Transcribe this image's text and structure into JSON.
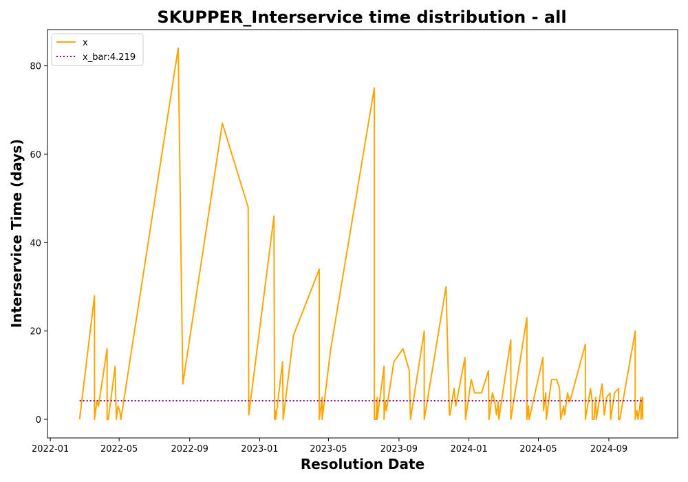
{
  "chart_data": {
    "type": "line",
    "title": "SKUPPER_Interservice time distribution - all",
    "xlabel": "Resolution Date",
    "ylabel": "Interservice Time (days)",
    "x_tick_labels": [
      "2022-01",
      "2022-05",
      "2022-09",
      "2023-01",
      "2023-05",
      "2023-09",
      "2024-01",
      "2024-05",
      "2024-09"
    ],
    "x_ticks": [
      "2022-01-01",
      "2022-05-01",
      "2022-09-01",
      "2023-01-01",
      "2023-05-01",
      "2023-09-01",
      "2024-01-01",
      "2024-05-01",
      "2024-09-01"
    ],
    "y_ticks": [
      0,
      20,
      40,
      60,
      80
    ],
    "xlim": [
      "2021-12-27",
      "2024-12-30"
    ],
    "ylim": [
      -4.2,
      88.2
    ],
    "legend_position": "top-left",
    "series": [
      {
        "name": "x",
        "color": "#FFA500",
        "style": "solid",
        "points": [
          [
            "2022-02-21",
            0
          ],
          [
            "2022-03-19",
            28
          ],
          [
            "2022-03-19",
            0
          ],
          [
            "2022-03-23",
            4
          ],
          [
            "2022-03-26",
            3
          ],
          [
            "2022-04-10",
            16
          ],
          [
            "2022-04-10",
            0
          ],
          [
            "2022-04-12",
            0
          ],
          [
            "2022-04-24",
            12
          ],
          [
            "2022-04-26",
            0
          ],
          [
            "2022-04-29",
            3
          ],
          [
            "2022-05-02",
            2
          ],
          [
            "2022-05-04",
            0
          ],
          [
            "2022-08-12",
            84
          ],
          [
            "2022-08-20",
            8
          ],
          [
            "2022-10-28",
            67
          ],
          [
            "2022-12-12",
            48
          ],
          [
            "2022-12-13",
            1
          ],
          [
            "2023-01-26",
            46
          ],
          [
            "2023-01-27",
            0
          ],
          [
            "2023-01-28",
            2
          ],
          [
            "2023-01-29",
            0
          ],
          [
            "2023-02-10",
            13
          ],
          [
            "2023-02-11",
            0
          ],
          [
            "2023-03-01",
            19
          ],
          [
            "2023-04-15",
            34
          ],
          [
            "2023-04-15",
            0
          ],
          [
            "2023-04-20",
            5
          ],
          [
            "2023-04-20",
            0
          ],
          [
            "2023-05-05",
            16
          ],
          [
            "2023-07-20",
            75
          ],
          [
            "2023-07-20",
            0
          ],
          [
            "2023-07-23",
            0
          ],
          [
            "2023-07-25",
            5
          ],
          [
            "2023-07-25",
            0
          ],
          [
            "2023-08-06",
            12
          ],
          [
            "2023-08-06",
            0
          ],
          [
            "2023-08-08",
            4
          ],
          [
            "2023-08-10",
            2
          ],
          [
            "2023-08-23",
            13
          ],
          [
            "2023-09-08",
            16
          ],
          [
            "2023-09-19",
            11
          ],
          [
            "2023-09-21",
            0
          ],
          [
            "2023-10-15",
            20
          ],
          [
            "2023-10-15",
            0
          ],
          [
            "2023-11-22",
            30
          ],
          [
            "2023-11-28",
            1
          ],
          [
            "2023-11-29",
            1
          ],
          [
            "2023-12-06",
            7
          ],
          [
            "2023-12-09",
            3
          ],
          [
            "2023-12-25",
            14
          ],
          [
            "2023-12-26",
            0
          ],
          [
            "2024-01-05",
            9
          ],
          [
            "2024-01-11",
            6
          ],
          [
            "2024-01-23",
            6
          ],
          [
            "2024-02-04",
            11
          ],
          [
            "2024-02-05",
            0
          ],
          [
            "2024-02-11",
            6
          ],
          [
            "2024-02-15",
            4
          ],
          [
            "2024-02-18",
            1
          ],
          [
            "2024-02-21",
            4
          ],
          [
            "2024-02-22",
            0
          ],
          [
            "2024-03-14",
            18
          ],
          [
            "2024-03-14",
            0
          ],
          [
            "2024-04-11",
            23
          ],
          [
            "2024-04-11",
            0
          ],
          [
            "2024-04-14",
            3
          ],
          [
            "2024-04-15",
            0
          ],
          [
            "2024-05-09",
            14
          ],
          [
            "2024-05-10",
            2
          ],
          [
            "2024-05-14",
            6
          ],
          [
            "2024-05-15",
            0
          ],
          [
            "2024-05-24",
            9
          ],
          [
            "2024-06-02",
            9
          ],
          [
            "2024-06-07",
            7
          ],
          [
            "2024-06-09",
            0
          ],
          [
            "2024-06-14",
            3
          ],
          [
            "2024-06-16",
            1
          ],
          [
            "2024-06-21",
            6
          ],
          [
            "2024-06-25",
            4
          ],
          [
            "2024-07-22",
            17
          ],
          [
            "2024-07-22",
            0
          ],
          [
            "2024-07-31",
            7
          ],
          [
            "2024-08-03",
            4
          ],
          [
            "2024-08-03",
            0
          ],
          [
            "2024-08-06",
            0
          ],
          [
            "2024-08-09",
            5
          ],
          [
            "2024-08-10",
            0
          ],
          [
            "2024-08-20",
            8
          ],
          [
            "2024-08-24",
            1
          ],
          [
            "2024-08-28",
            5
          ],
          [
            "2024-09-03",
            6
          ],
          [
            "2024-09-04",
            0
          ],
          [
            "2024-09-11",
            6
          ],
          [
            "2024-09-18",
            7
          ],
          [
            "2024-09-18",
            0
          ],
          [
            "2024-09-20",
            0
          ],
          [
            "2024-10-17",
            20
          ],
          [
            "2024-10-17",
            0
          ],
          [
            "2024-10-20",
            2
          ],
          [
            "2024-10-22",
            0
          ],
          [
            "2024-10-27",
            5
          ],
          [
            "2024-10-27",
            0
          ],
          [
            "2024-10-30",
            5
          ],
          [
            "2024-10-30",
            0
          ]
        ]
      },
      {
        "name": "x_bar:4.219",
        "color": "#800080",
        "style": "dotted",
        "value": 4.219,
        "x_range": [
          "2022-02-21",
          "2024-10-30"
        ]
      }
    ]
  }
}
